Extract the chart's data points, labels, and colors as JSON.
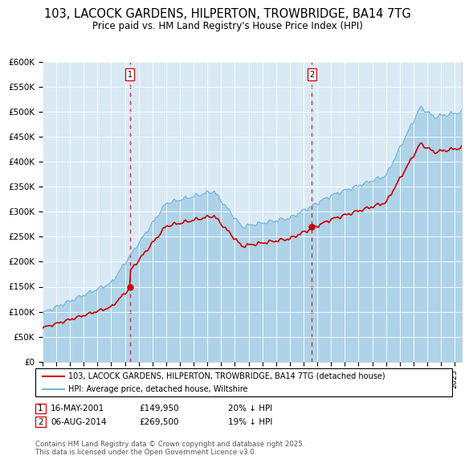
{
  "title": "103, LACOCK GARDENS, HILPERTON, TROWBRIDGE, BA14 7TG",
  "subtitle": "Price paid vs. HM Land Registry's House Price Index (HPI)",
  "hpi_color": "#7ab8d9",
  "hpi_fill_color": "#daeaf5",
  "house_color": "#cc0000",
  "ylabel_ticks": [
    "£0",
    "£50K",
    "£100K",
    "£150K",
    "£200K",
    "£250K",
    "£300K",
    "£350K",
    "£400K",
    "£450K",
    "£500K",
    "£550K",
    "£600K"
  ],
  "ylim": [
    0,
    600000
  ],
  "purchase1_year": 2001.37,
  "purchase1_price": 149950,
  "purchase2_year": 2014.6,
  "purchase2_price": 269500,
  "purchase1_date": "16-MAY-2001",
  "purchase2_date": "06-AUG-2014",
  "legend_line1": "103, LACOCK GARDENS, HILPERTON, TROWBRIDGE, BA14 7TG (detached house)",
  "legend_line2": "HPI: Average price, detached house, Wiltshire",
  "purchase1_pct": "20%",
  "purchase2_pct": "19%",
  "footer": "Contains HM Land Registry data © Crown copyright and database right 2025.\nThis data is licensed under the Open Government Licence v3.0.",
  "dashed_line_color": "#cc0000"
}
